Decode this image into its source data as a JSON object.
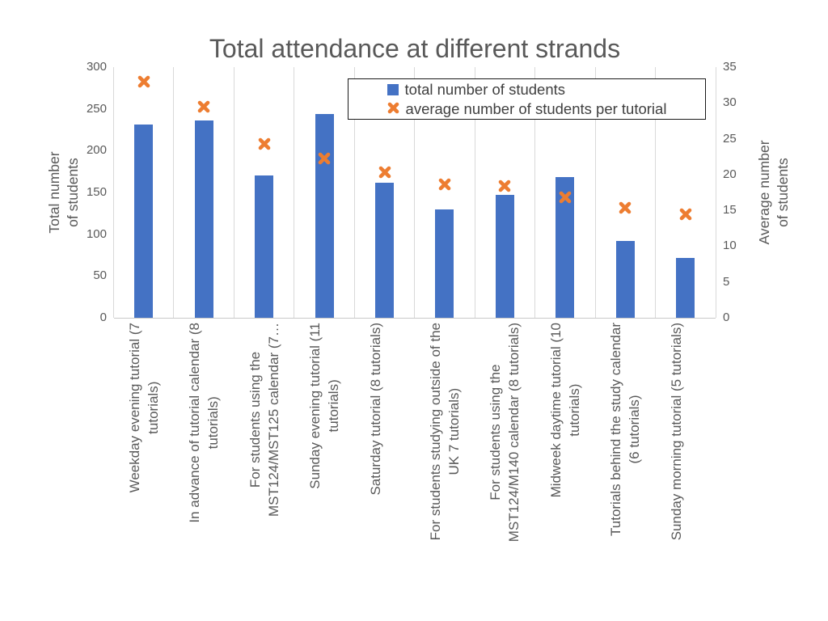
{
  "title": "Total attendance at different strands",
  "legend": {
    "items": [
      {
        "label": "total number of students",
        "marker": "blue-square",
        "color": "#4472C4"
      },
      {
        "label": "average number of students per tutorial",
        "marker": "orange-x-cross",
        "color": "#ED7D31"
      }
    ]
  },
  "left_axis": {
    "title": "Total number of students",
    "title_display": "Total number\nof students",
    "ticks": [
      0,
      50,
      100,
      150,
      200,
      250,
      300
    ],
    "range": [
      0,
      300
    ]
  },
  "right_axis": {
    "title": "Average number of students",
    "title_display": "Average number\nof students",
    "ticks": [
      0,
      5,
      10,
      15,
      20,
      25,
      30,
      35
    ],
    "range": [
      0,
      35
    ]
  },
  "colors": {
    "bar": "#4472C4",
    "marker": "#ED7D31",
    "gridline": "#d9d9d9",
    "text": "#595959"
  },
  "chart_data": {
    "type": "bar",
    "title": "Total attendance at different strands",
    "grid": "vertical-only",
    "legend_position": "top-right-inside",
    "left_ylim": [
      0,
      300
    ],
    "right_ylim": [
      0,
      35
    ],
    "categories": [
      "Weekday evening tutorial (7 tutorials)",
      "In advance of tutorial calendar (8 tutorials)",
      "For students using the MST124/MST125 calendar (7…",
      "Sunday evening tutorial (11 tutorials)",
      "Saturday tutorial (8 tutorials)",
      "For students studying outside of the UK 7 tutorials)",
      "For students using the MST124/M140 calendar (8 tutorials)",
      "Midweek daytime tutorial (10 tutorials)",
      "Tutorials behind the study calendar (6 tutorials)",
      "Sunday morning tutorial (5 tutorials)"
    ],
    "category_lines": [
      [
        "Weekday evening tutorial (7",
        "tutorials)"
      ],
      [
        "In advance of tutorial calendar (8",
        "tutorials)"
      ],
      [
        "For students using the",
        "MST124/MST125 calendar (7…"
      ],
      [
        "Sunday evening tutorial (11",
        "tutorials)"
      ],
      [
        "Saturday tutorial (8 tutorials)"
      ],
      [
        "For students studying outside of the",
        "UK 7 tutorials)"
      ],
      [
        "For students using the",
        "MST124/M140 calendar (8 tutorials)"
      ],
      [
        "Midweek daytime tutorial (10",
        "tutorials)"
      ],
      [
        "Tutorials behind the study calendar",
        "(6 tutorials)"
      ],
      [
        "Sunday morning tutorial (5 tutorials)"
      ]
    ],
    "series": [
      {
        "name": "total number of students",
        "type": "bar",
        "axis": "left",
        "color": "#4472C4",
        "values": [
          231,
          236,
          170,
          244,
          162,
          130,
          147,
          168,
          92,
          72
        ]
      },
      {
        "name": "average number of students per tutorial",
        "type": "scatter-x",
        "axis": "right",
        "color": "#ED7D31",
        "values": [
          33.0,
          29.5,
          24.3,
          22.2,
          20.3,
          18.6,
          18.4,
          16.8,
          15.3,
          14.4
        ]
      }
    ]
  }
}
